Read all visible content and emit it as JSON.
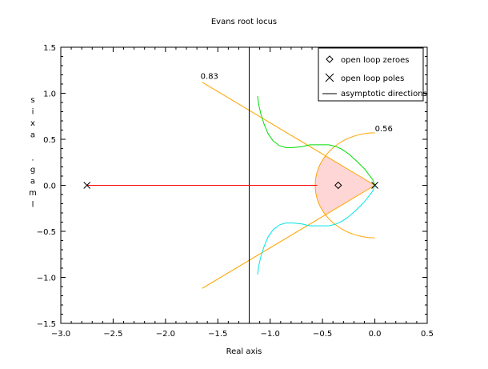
{
  "chart_data": {
    "type": "line",
    "title": "Evans root locus",
    "xlabel": "Real axis",
    "ylabel": "lmag. axis",
    "xlim": [
      -3.0,
      0.5
    ],
    "ylim": [
      -1.5,
      1.5
    ],
    "xticks": [
      "−3.0",
      "−2.5",
      "−2.0",
      "−1.5",
      "−1.0",
      "−0.5",
      "0.0",
      "0.5"
    ],
    "yticks": [
      "−1.5",
      "−1.0",
      "−0.5",
      "0.0",
      "0.5",
      "1.0",
      "1.5"
    ],
    "x_tick_values": [
      -3.0,
      -2.5,
      -2.0,
      -1.5,
      -1.0,
      -0.5,
      0.0,
      0.5
    ],
    "y_tick_values": [
      -1.5,
      -1.0,
      -0.5,
      0.0,
      0.5,
      1.0,
      1.5
    ],
    "legend": {
      "position": "top-right",
      "entries": [
        {
          "marker": "diamond",
          "label": "open loop zeroes"
        },
        {
          "marker": "cross",
          "label": "open loop poles"
        },
        {
          "marker": "line",
          "label": "asymptotic directions"
        }
      ]
    },
    "zeros": [
      {
        "x": -0.35,
        "y": 0.0
      }
    ],
    "poles": [
      {
        "x": -2.75,
        "y": 0.0
      },
      {
        "x": 0.0,
        "y": 0.0
      }
    ],
    "asymptote_x": -1.2,
    "damping_rays": [
      {
        "label": "0.83",
        "x": -1.65,
        "y": 1.12
      },
      {
        "label": "0.56",
        "x": 0.0,
        "y": 0.57
      }
    ],
    "damping_arc_radius": 0.57,
    "series": [
      {
        "color": "#ff0000",
        "x": [
          -2.75,
          -0.55
        ],
        "y": [
          0.0,
          0.0
        ]
      },
      {
        "color": "#00dd00",
        "x": [
          -1.12,
          -1.11,
          -1.09,
          -1.06,
          -1.02,
          -0.97,
          -0.91,
          -0.85,
          -0.78,
          -0.7,
          -0.62,
          -0.55,
          -0.49,
          -0.44,
          -0.4,
          -0.37,
          -0.35,
          -0.33,
          -0.3,
          -0.25,
          -0.18,
          -0.1,
          -0.02,
          0.0
        ],
        "y": [
          0.97,
          0.88,
          0.78,
          0.67,
          0.56,
          0.48,
          0.43,
          0.41,
          0.41,
          0.42,
          0.44,
          0.44,
          0.44,
          0.44,
          0.43,
          0.42,
          0.41,
          0.4,
          0.38,
          0.34,
          0.27,
          0.18,
          0.06,
          0.0
        ]
      },
      {
        "color": "#00e5e5",
        "x": [
          -1.12,
          -1.11,
          -1.09,
          -1.06,
          -1.02,
          -0.97,
          -0.91,
          -0.85,
          -0.78,
          -0.7,
          -0.62,
          -0.55,
          -0.49,
          -0.44,
          -0.4,
          -0.37,
          -0.35,
          -0.33,
          -0.3,
          -0.25,
          -0.18,
          -0.1,
          -0.02,
          0.0
        ],
        "y": [
          -0.97,
          -0.88,
          -0.78,
          -0.67,
          -0.56,
          -0.48,
          -0.43,
          -0.41,
          -0.41,
          -0.42,
          -0.44,
          -0.44,
          -0.44,
          -0.44,
          -0.43,
          -0.42,
          -0.41,
          -0.4,
          -0.38,
          -0.34,
          -0.27,
          -0.18,
          -0.06,
          0.0
        ]
      }
    ],
    "colors": {
      "damping": "#ffa500",
      "fill": "#ffd6d6",
      "asymptote": "#000000"
    },
    "grid": false
  }
}
